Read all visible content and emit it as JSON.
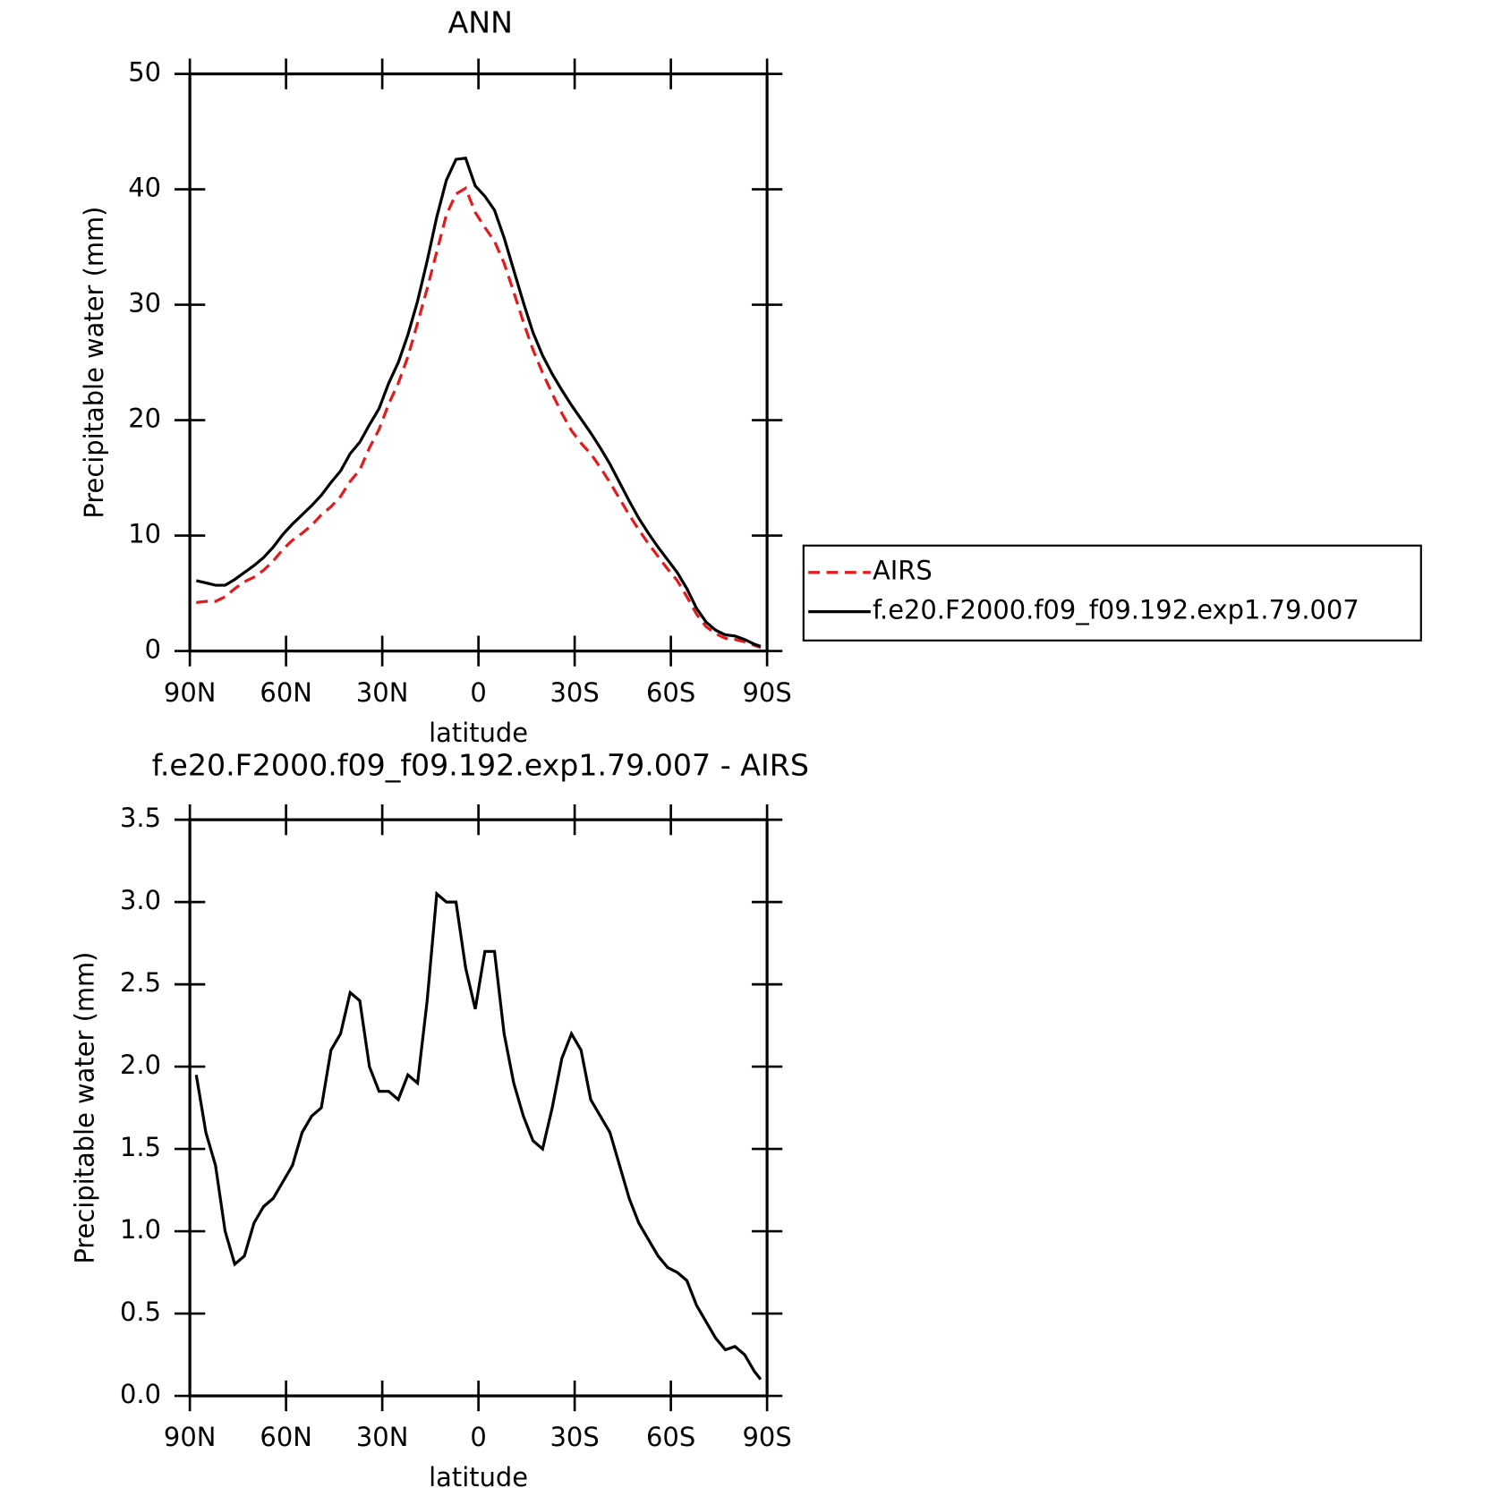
{
  "chart_data": [
    {
      "type": "line",
      "title": "ANN",
      "xlabel": "latitude",
      "ylabel": "Precipitable water (mm)",
      "x": [
        88,
        85,
        82,
        79,
        76,
        73,
        70,
        67,
        64,
        61,
        58,
        55,
        52,
        49,
        46,
        43,
        40,
        37,
        34,
        31,
        28,
        25,
        22,
        19,
        16,
        13,
        10,
        7,
        4,
        1,
        -2,
        -5,
        -8,
        -11,
        -14,
        -17,
        -20,
        -23,
        -26,
        -29,
        -32,
        -35,
        -38,
        -41,
        -44,
        -47,
        -50,
        -53,
        -56,
        -59,
        -62,
        -65,
        -68,
        -71,
        -74,
        -77,
        -80,
        -83,
        -86,
        -88
      ],
      "series": [
        {
          "name": "AIRS",
          "color": "#e41a1c",
          "style": "dashed",
          "values": [
            4.2,
            4.3,
            4.3,
            4.7,
            5.4,
            6.0,
            6.4,
            7.0,
            7.8,
            8.8,
            9.6,
            10.2,
            10.9,
            11.8,
            12.5,
            13.4,
            14.7,
            15.7,
            17.6,
            19.2,
            21.4,
            23.2,
            25.5,
            28.4,
            31.4,
            34.6,
            37.8,
            39.6,
            40.1,
            38.0,
            36.7,
            35.5,
            33.6,
            31.1,
            28.5,
            26.1,
            24.1,
            22.3,
            20.6,
            19.1,
            18.0,
            17.1,
            15.9,
            14.6,
            13.2,
            11.8,
            10.5,
            9.3,
            8.2,
            7.1,
            6.1,
            4.7,
            3.2,
            2.1,
            1.5,
            1.1,
            1.0,
            0.8,
            0.5,
            0.3
          ]
        },
        {
          "name": "f.e20.F2000.f09_f09.192.exp1.79.007",
          "color": "#000000",
          "style": "solid",
          "values": [
            6.1,
            5.9,
            5.7,
            5.7,
            6.2,
            6.8,
            7.4,
            8.1,
            9.0,
            10.1,
            11.0,
            11.8,
            12.6,
            13.5,
            14.6,
            15.6,
            17.1,
            18.1,
            19.6,
            21.0,
            23.2,
            25.0,
            27.4,
            30.3,
            33.8,
            37.6,
            40.8,
            42.6,
            42.7,
            40.3,
            39.4,
            38.2,
            35.8,
            33.0,
            30.2,
            27.6,
            25.6,
            24.0,
            22.6,
            21.3,
            20.1,
            18.9,
            17.6,
            16.2,
            14.6,
            13.0,
            11.5,
            10.2,
            9.0,
            7.9,
            6.8,
            5.4,
            3.7,
            2.5,
            1.8,
            1.4,
            1.3,
            1.0,
            0.6,
            0.4
          ]
        }
      ],
      "xlim": [
        90,
        -90
      ],
      "xticks": [
        {
          "value": 90,
          "label": "90N"
        },
        {
          "value": 60,
          "label": "60N"
        },
        {
          "value": 30,
          "label": "30N"
        },
        0,
        {
          "value": -30,
          "label": "30S"
        },
        {
          "value": -60,
          "label": "60S"
        },
        {
          "value": -90,
          "label": "90S"
        }
      ],
      "ylim": [
        0,
        50
      ],
      "yticks": [
        0,
        10,
        20,
        30,
        40,
        50
      ],
      "legend": "right"
    },
    {
      "type": "line",
      "title": "f.e20.F2000.f09_f09.192.exp1.79.007 - AIRS",
      "xlabel": "latitude",
      "ylabel": "Precipitable water (mm)",
      "x": [
        88,
        85,
        82,
        79,
        76,
        73,
        70,
        67,
        64,
        61,
        58,
        55,
        52,
        49,
        46,
        43,
        40,
        37,
        34,
        31,
        28,
        25,
        22,
        19,
        16,
        13,
        10,
        7,
        4,
        1,
        -2,
        -5,
        -8,
        -11,
        -14,
        -17,
        -20,
        -23,
        -26,
        -29,
        -32,
        -35,
        -38,
        -41,
        -44,
        -47,
        -50,
        -53,
        -56,
        -59,
        -62,
        -65,
        -68,
        -71,
        -74,
        -77,
        -80,
        -83,
        -86,
        -88
      ],
      "series": [
        {
          "color": "#000000",
          "style": "solid",
          "values": [
            1.95,
            1.6,
            1.4,
            1.0,
            0.8,
            0.85,
            1.05,
            1.15,
            1.2,
            1.3,
            1.4,
            1.6,
            1.7,
            1.75,
            2.1,
            2.2,
            2.45,
            2.4,
            2.0,
            1.85,
            1.85,
            1.8,
            1.95,
            1.9,
            2.4,
            3.05,
            3.0,
            3.0,
            2.6,
            2.35,
            2.7,
            2.7,
            2.2,
            1.9,
            1.7,
            1.55,
            1.5,
            1.75,
            2.05,
            2.2,
            2.1,
            1.8,
            1.7,
            1.6,
            1.4,
            1.2,
            1.05,
            0.95,
            0.85,
            0.78,
            0.75,
            0.7,
            0.55,
            0.45,
            0.35,
            0.28,
            0.3,
            0.25,
            0.15,
            0.1
          ]
        }
      ],
      "xlim": [
        90,
        -90
      ],
      "xticks": [
        {
          "value": 90,
          "label": "90N"
        },
        {
          "value": 60,
          "label": "60N"
        },
        {
          "value": 30,
          "label": "30N"
        },
        0,
        {
          "value": -30,
          "label": "30S"
        },
        {
          "value": -60,
          "label": "60S"
        },
        {
          "value": -90,
          "label": "90S"
        }
      ],
      "ylim": [
        0,
        3.5
      ],
      "yticks": [
        {
          "value": 0,
          "label": "0.0"
        },
        0.5,
        {
          "value": 1,
          "label": "1.0"
        },
        1.5,
        {
          "value": 2,
          "label": "2.0"
        },
        2.5,
        {
          "value": 3,
          "label": "3.0"
        },
        3.5
      ]
    }
  ]
}
